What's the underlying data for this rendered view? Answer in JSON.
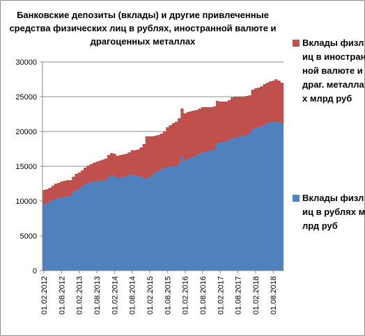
{
  "chart_data": {
    "type": "area",
    "stacked": true,
    "title": "Банковские депозиты (вклады) и другие привлеченные средства физических лиц в рублях, иностранной валюте и драгоценных металлах",
    "title_lines": [
      "Банковские депозиты (вклады) и другие привлеченные",
      "средства физических лиц в рублях, иностранной валюте и",
      "драгоценных металлах"
    ],
    "xlabel": "",
    "ylabel": "",
    "ylim": [
      0,
      30000
    ],
    "yticks": [
      0,
      5000,
      10000,
      15000,
      20000,
      25000,
      30000
    ],
    "ytick_labels": [
      "0",
      "5000",
      "10000",
      "15000",
      "20000",
      "25000",
      "30000"
    ],
    "xtick_labels": [
      "01.02.2012",
      "01.08.2012",
      "01.02.2013",
      "01.08.2013",
      "01.02.2014",
      "01.08.2014",
      "01.02.2015",
      "01.08.2015",
      "01.02.2016",
      "01.08.2016",
      "01.02.2017",
      "01.08.2017",
      "01.02.2018",
      "01.08.2018"
    ],
    "xtick_every": 6,
    "legend_position": "right",
    "gridlines": true,
    "categories": [
      "01.02.2012",
      "01.03.2012",
      "01.04.2012",
      "01.05.2012",
      "01.06.2012",
      "01.07.2012",
      "01.08.2012",
      "01.09.2012",
      "01.10.2012",
      "01.11.2012",
      "01.12.2012",
      "01.01.2013",
      "01.02.2013",
      "01.03.2013",
      "01.04.2013",
      "01.05.2013",
      "01.06.2013",
      "01.07.2013",
      "01.08.2013",
      "01.09.2013",
      "01.10.2013",
      "01.11.2013",
      "01.12.2013",
      "01.01.2014",
      "01.02.2014",
      "01.03.2014",
      "01.04.2014",
      "01.05.2014",
      "01.06.2014",
      "01.07.2014",
      "01.08.2014",
      "01.09.2014",
      "01.10.2014",
      "01.11.2014",
      "01.12.2014",
      "01.01.2015",
      "01.02.2015",
      "01.03.2015",
      "01.04.2015",
      "01.05.2015",
      "01.06.2015",
      "01.07.2015",
      "01.08.2015",
      "01.09.2015",
      "01.10.2015",
      "01.11.2015",
      "01.12.2015",
      "01.01.2016",
      "01.02.2016",
      "01.03.2016",
      "01.04.2016",
      "01.05.2016",
      "01.06.2016",
      "01.07.2016",
      "01.08.2016",
      "01.09.2016",
      "01.10.2016",
      "01.11.2016",
      "01.12.2016",
      "01.01.2017",
      "01.02.2017",
      "01.03.2017",
      "01.04.2017",
      "01.05.2017",
      "01.06.2017",
      "01.07.2017",
      "01.08.2017",
      "01.09.2017",
      "01.10.2017",
      "01.11.2017",
      "01.12.2017",
      "01.01.2018",
      "01.02.2018",
      "01.03.2018",
      "01.04.2018",
      "01.05.2018",
      "01.06.2018",
      "01.07.2018",
      "01.08.2018",
      "01.09.2018",
      "01.10.2018",
      "01.11.2018"
    ],
    "series": [
      {
        "name": "Вклады физлиц в рублях млрд руб",
        "color": "#4f81bd",
        "values": [
          9500,
          9700,
          9900,
          10100,
          10300,
          10400,
          10500,
          10600,
          10700,
          10800,
          11300,
          11600,
          11800,
          12100,
          12400,
          12600,
          12700,
          12800,
          12850,
          12900,
          12950,
          13000,
          13400,
          13800,
          13500,
          13300,
          13400,
          13500,
          13600,
          13700,
          13800,
          13700,
          13600,
          13500,
          13300,
          13200,
          13500,
          13800,
          14100,
          14400,
          14600,
          14800,
          14900,
          14900,
          15000,
          15100,
          15400,
          16400,
          15800,
          16000,
          16200,
          16400,
          16600,
          16800,
          17000,
          17100,
          17200,
          17300,
          17400,
          18300,
          18400,
          18500,
          18600,
          18800,
          19000,
          19100,
          19200,
          19300,
          19400,
          19500,
          19700,
          20300,
          20500,
          20600,
          20800,
          21000,
          21200,
          21300,
          21400,
          21400,
          21300,
          21100
        ]
      },
      {
        "name": "Вклады физлиц в иностранной валюте и драг. металлах млрд руб",
        "color": "#c0504d",
        "values": [
          2100,
          2000,
          2000,
          2100,
          2200,
          2200,
          2300,
          2300,
          2300,
          2200,
          2200,
          2300,
          2300,
          2300,
          2400,
          2500,
          2600,
          2700,
          2800,
          2900,
          3000,
          3100,
          3200,
          3100,
          3300,
          3200,
          3200,
          3200,
          3200,
          3300,
          3500,
          3600,
          3800,
          4200,
          4900,
          6100,
          5800,
          5500,
          5300,
          5100,
          5100,
          5200,
          5700,
          6000,
          6200,
          6300,
          6500,
          6900,
          6800,
          6800,
          6700,
          6600,
          6500,
          6500,
          6500,
          6400,
          6300,
          6200,
          6200,
          6100,
          5900,
          5800,
          5700,
          5700,
          5900,
          5900,
          5800,
          5700,
          5600,
          5600,
          5500,
          5700,
          5700,
          5700,
          5700,
          5800,
          5800,
          5900,
          5900,
          6100,
          6000,
          5900
        ]
      }
    ]
  }
}
